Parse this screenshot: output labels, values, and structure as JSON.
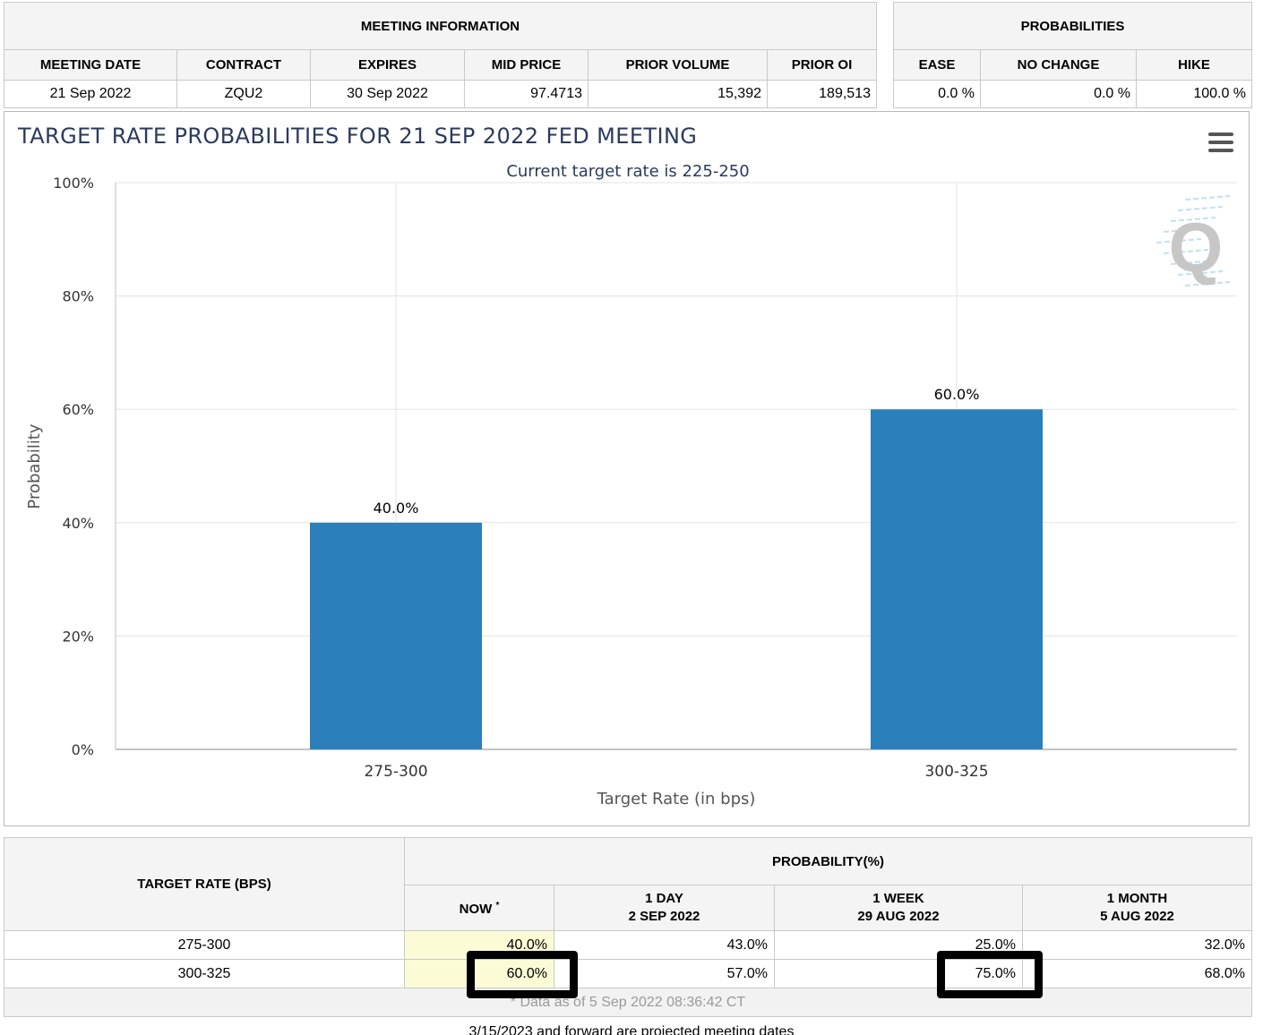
{
  "meeting_info": {
    "title": "MEETING INFORMATION",
    "headers": [
      "MEETING DATE",
      "CONTRACT",
      "EXPIRES",
      "MID PRICE",
      "PRIOR VOLUME",
      "PRIOR OI"
    ],
    "values": [
      "21 Sep 2022",
      "ZQU2",
      "30 Sep 2022",
      "97.4713",
      "15,392",
      "189,513"
    ]
  },
  "probabilities": {
    "title": "PROBABILITIES",
    "headers": [
      "EASE",
      "NO CHANGE",
      "HIKE"
    ],
    "values": [
      "0.0 %",
      "0.0 %",
      "100.0 %"
    ]
  },
  "chart_data": {
    "type": "bar",
    "title": "TARGET RATE PROBABILITIES FOR 21 SEP 2022 FED MEETING",
    "subtitle": "Current target rate is 225-250",
    "xlabel": "Target Rate (in bps)",
    "ylabel": "Probability",
    "categories": [
      "275-300",
      "300-325"
    ],
    "values": [
      40.0,
      60.0
    ],
    "data_labels": [
      "40.0%",
      "60.0%"
    ],
    "ylim": [
      0,
      100
    ],
    "yticks": [
      0,
      20,
      40,
      60,
      80,
      100
    ],
    "ytick_labels": [
      "0%",
      "20%",
      "40%",
      "60%",
      "80%",
      "100%"
    ],
    "bar_color": "#2b7fba",
    "grid": true,
    "legend": "none"
  },
  "chart_colors": {
    "title": "#2b3a5e",
    "subtitle": "#2b3a5e",
    "watermark_letter": "#c7c7c7",
    "watermark_stripes": "#bfe1f3"
  },
  "watermark": {
    "letter": "Q"
  },
  "chart_menu_icon": "hamburger-menu-icon",
  "rate_table": {
    "header_left": "TARGET RATE (BPS)",
    "header_group": "PROBABILITY(%)",
    "columns": [
      {
        "line1": "NOW",
        "line2": ""
      },
      {
        "line1": "1 DAY",
        "line2": "2 SEP 2022"
      },
      {
        "line1": "1 WEEK",
        "line2": "29 AUG 2022"
      },
      {
        "line1": "1 MONTH",
        "line2": "5 AUG 2022"
      }
    ],
    "now_marker": "*",
    "rows": [
      {
        "rate": "275-300",
        "values": [
          "40.0%",
          "43.0%",
          "25.0%",
          "32.0%"
        ]
      },
      {
        "rate": "300-325",
        "values": [
          "60.0%",
          "57.0%",
          "75.0%",
          "68.0%"
        ]
      }
    ],
    "as_of": "* Data as of 5 Sep 2022 08:36:42 CT"
  },
  "footnote": "3/15/2023 and forward are projected meeting dates"
}
